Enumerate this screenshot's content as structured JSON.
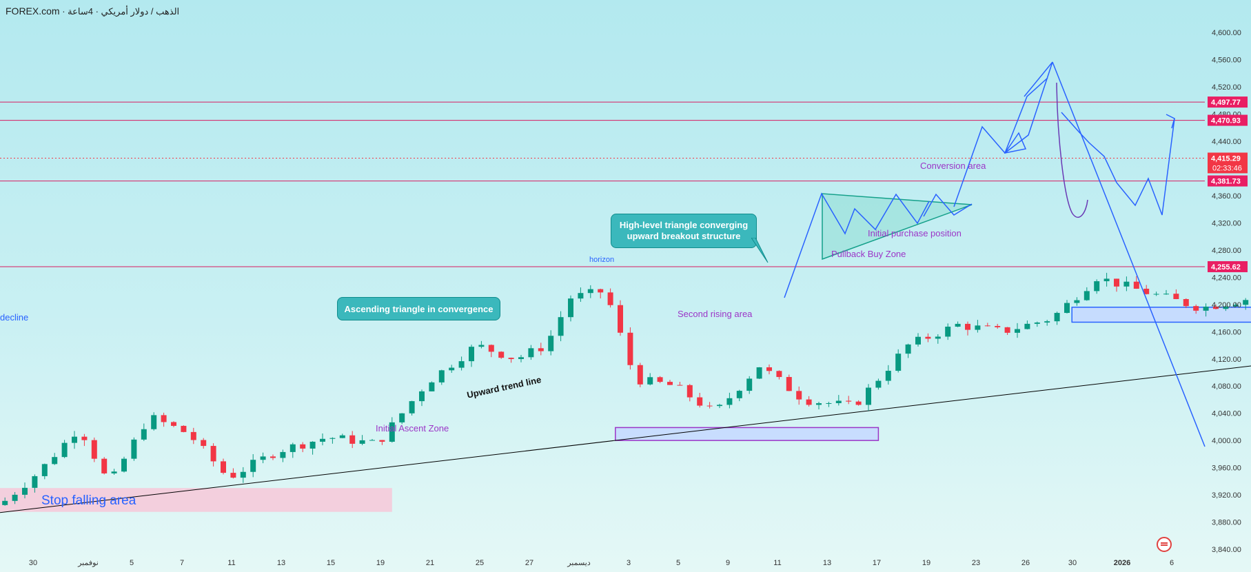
{
  "header": {
    "brand": "FOREX.com",
    "instrument": "الذهب / دولار أمريكي · 4ساعة"
  },
  "colors": {
    "up": "#089981",
    "down": "#f23645",
    "trend_arrows": "#2962ff",
    "horizontal_levels": "#d81b60",
    "trendline": "#000000",
    "tag_red": "#e91e63"
  },
  "annotations": {
    "ascending_triangle": "Ascending triangle in convergence",
    "triangle_breakout_line1": "High-level triangle converging",
    "triangle_breakout_line2": "upward breakout structure",
    "stop_falling_area": "Stop falling area",
    "initial_ascent_zone": "Initial Ascent Zone",
    "second_rising_area": "Second rising area",
    "pullback_buy_zone": "Pullback Buy Zone",
    "initial_purchase_position": "Initial purchase position",
    "conversion_area": "Conversion area",
    "upward_trend_line": "Upward trend line",
    "horizon": "horizon",
    "decline": "decline"
  },
  "chart_data": {
    "type": "candlestick",
    "title": "",
    "timeframe": "4ساعة",
    "ylim": [
      3840,
      4620
    ],
    "y_ticks": [
      3840,
      3880,
      3920,
      3960,
      4000,
      4040,
      4080,
      4120,
      4160,
      4200,
      4240,
      4280,
      4320,
      4360,
      4400,
      4440,
      4480,
      4520,
      4560,
      4600
    ],
    "x_ticks": [
      "30",
      "نوفمبر",
      "5",
      "7",
      "11",
      "13",
      "15",
      "19",
      "21",
      "25",
      "27",
      "ديسمبر",
      "3",
      "5",
      "9",
      "11",
      "13",
      "17",
      "19",
      "23",
      "26",
      "30",
      "2026",
      "6"
    ],
    "price_levels": [
      {
        "value": 4497.77,
        "label": "4,497.77"
      },
      {
        "value": 4470.93,
        "label": "4,470.93"
      },
      {
        "value": 4381.73,
        "label": "4,381.73"
      },
      {
        "value": 4255.62,
        "label": "4,255.62"
      }
    ],
    "current_price": {
      "value": 4415.29,
      "label": "4,415.29",
      "countdown": "02:33:46"
    },
    "price_path": [
      {
        "t": 0,
        "p": 3905
      },
      {
        "t": 0.8,
        "p": 3955
      },
      {
        "t": 1.6,
        "p": 4020
      },
      {
        "t": 2.2,
        "p": 3935
      },
      {
        "t": 3,
        "p": 4035
      },
      {
        "t": 3.8,
        "p": 4010
      },
      {
        "t": 4.6,
        "p": 3945
      },
      {
        "t": 5.6,
        "p": 3985
      },
      {
        "t": 6.6,
        "p": 4005
      },
      {
        "t": 7.6,
        "p": 3995
      },
      {
        "t": 8.6,
        "p": 4085
      },
      {
        "t": 9.6,
        "p": 4140
      },
      {
        "t": 10.4,
        "p": 4120
      },
      {
        "t": 11,
        "p": 4140
      },
      {
        "t": 11.5,
        "p": 4210
      },
      {
        "t": 12.2,
        "p": 4220
      },
      {
        "t": 12.8,
        "p": 4090
      },
      {
        "t": 13.6,
        "p": 4080
      },
      {
        "t": 14.4,
        "p": 4040
      },
      {
        "t": 15.3,
        "p": 4110
      },
      {
        "t": 16.2,
        "p": 4060
      },
      {
        "t": 17.2,
        "p": 4050
      },
      {
        "t": 18.3,
        "p": 4140
      },
      {
        "t": 19.3,
        "p": 4170
      },
      {
        "t": 20.2,
        "p": 4160
      },
      {
        "t": 21.2,
        "p": 4180
      },
      {
        "t": 22.1,
        "p": 4240
      },
      {
        "t": 23,
        "p": 4220
      },
      {
        "t": 24.2,
        "p": 4195
      },
      {
        "t": 25.6,
        "p": 4215
      },
      {
        "t": 26.9,
        "p": 4190
      },
      {
        "t": 27.8,
        "p": 4210
      },
      {
        "t": 28.9,
        "p": 4200
      },
      {
        "t": 29.9,
        "p": 4245
      },
      {
        "t": 30.8,
        "p": 4310
      },
      {
        "t": 31.6,
        "p": 4290
      },
      {
        "t": 32.3,
        "p": 4305
      },
      {
        "t": 33.2,
        "p": 4345
      },
      {
        "t": 34.2,
        "p": 4360
      },
      {
        "t": 35,
        "p": 4430
      },
      {
        "t": 36,
        "p": 4485
      },
      {
        "t": 37,
        "p": 4475
      },
      {
        "t": 38.1,
        "p": 4535
      },
      {
        "t": 38.6,
        "p": 4520
      },
      {
        "t": 39.1,
        "p": 4330
      },
      {
        "t": 39.8,
        "p": 4360
      },
      {
        "t": 40.4,
        "p": 4365
      },
      {
        "t": 41,
        "p": 4315
      },
      {
        "t": 41.8,
        "p": 4375
      },
      {
        "t": 42.4,
        "p": 4330
      },
      {
        "t": 43,
        "p": 4425
      },
      {
        "t": 43.2,
        "p": 4412
      }
    ],
    "trendline": {
      "from": {
        "t": 0,
        "p": 3894
      },
      "to": {
        "t": 44.2,
        "p": 4272
      }
    },
    "zones": [
      {
        "name": "stop_falling_area",
        "t0": 0,
        "t1": 7.9,
        "p0": 3895,
        "p1": 3930
      },
      {
        "name": "initial_ascent_zone",
        "t0": 12.4,
        "t1": 17.7,
        "p0": 4000,
        "p1": 4019
      },
      {
        "name": "second_rising_area",
        "t0": 21.6,
        "t1": 30.5,
        "p0": 4174,
        "p1": 4196
      },
      {
        "name": "pullback_buy_zone",
        "t0": 27.9,
        "t1": 35.3,
        "p0": 4256,
        "p1": 4270
      },
      {
        "name": "initial_purchase_position",
        "t0": 30.5,
        "t1": 36.1,
        "p0": 4285,
        "p1": 4301
      },
      {
        "name": "conversion_area",
        "t0": 29.4,
        "t1": 40,
        "p0": 4379,
        "p1": 4398
      }
    ]
  }
}
